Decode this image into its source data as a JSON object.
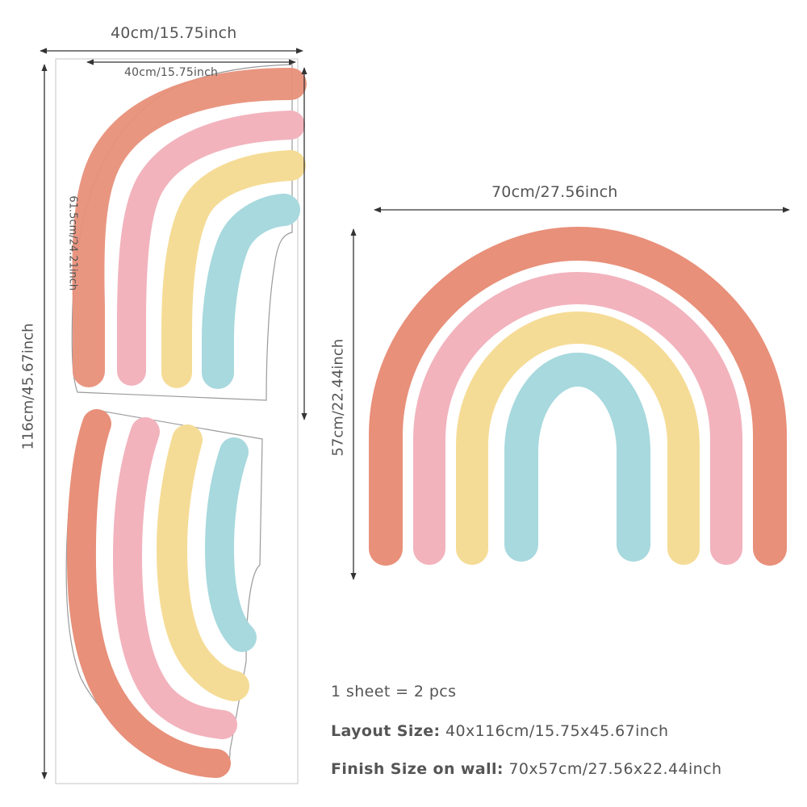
{
  "sheet": {
    "width_label": "40cm/15.75inch",
    "inner_width_label": "40cm/15.75inch",
    "height_label": "116cm/45.67inch",
    "piece_height_label": "61.5cm/24.21inch"
  },
  "finished": {
    "width_label": "70cm/27.56inch",
    "height_label": "57cm/22.44inch"
  },
  "info": {
    "line1": "1 sheet = 2 pcs",
    "layout_label": "Layout Size:",
    "layout_value": "40x116cm/15.75x45.67inch",
    "finish_label": "Finish Size on wall:",
    "finish_value": "70x57cm/27.56x22.44inch"
  },
  "colors": {
    "terracotta": "#e8907a",
    "pink": "#f2b3bd",
    "yellow": "#f5dc96",
    "blue": "#a7d9de",
    "text": "#555555",
    "outline": "#9a9a9a"
  }
}
